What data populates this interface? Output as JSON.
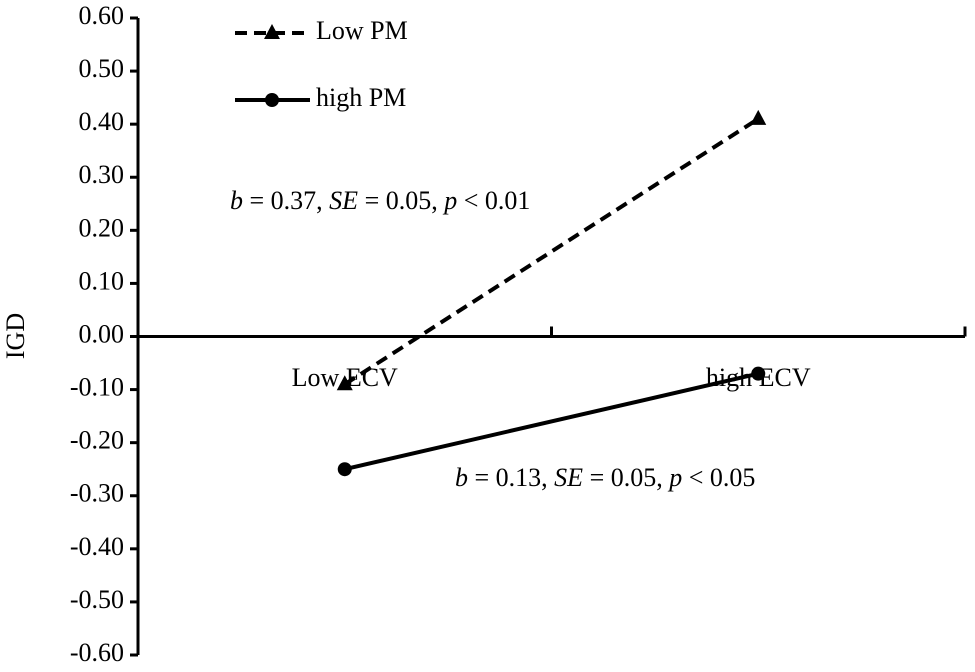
{
  "chart_data": {
    "type": "line",
    "y_label": "IGD",
    "categories": [
      "Low ECV",
      "high ECV"
    ],
    "series": [
      {
        "name": "Low PM",
        "color": "#000000",
        "dash": true,
        "marker": "triangle",
        "values": [
          -0.09,
          0.41
        ]
      },
      {
        "name": "high PM",
        "color": "#000000",
        "dash": false,
        "marker": "circle",
        "values": [
          -0.25,
          -0.07
        ]
      }
    ],
    "annotations": [
      [
        "b",
        " = 0.37, ",
        "SE",
        " = 0.05, ",
        "p",
        " < 0.01"
      ],
      [
        "b",
        " = 0.13, ",
        "SE",
        " = 0.05, ",
        "p",
        " < 0.05"
      ]
    ],
    "ylim": [
      -0.6,
      0.6
    ],
    "yticks": [
      {
        "value": 0.6,
        "label": "0.60"
      },
      {
        "value": 0.5,
        "label": "0.50"
      },
      {
        "value": 0.4,
        "label": "0.40"
      },
      {
        "value": 0.3,
        "label": "0.30"
      },
      {
        "value": 0.2,
        "label": "0.20"
      },
      {
        "value": 0.1,
        "label": "0.10"
      },
      {
        "value": 0,
        "label": "0.00"
      },
      {
        "value": -0.1,
        "label": "-0.10"
      },
      {
        "value": -0.2,
        "label": "-0.20"
      },
      {
        "value": -0.3,
        "label": "-0.30"
      },
      {
        "value": -0.4,
        "label": "-0.40"
      },
      {
        "value": -0.5,
        "label": "-0.50"
      },
      {
        "value": -0.6,
        "label": "-0.60"
      }
    ],
    "grid": false
  }
}
